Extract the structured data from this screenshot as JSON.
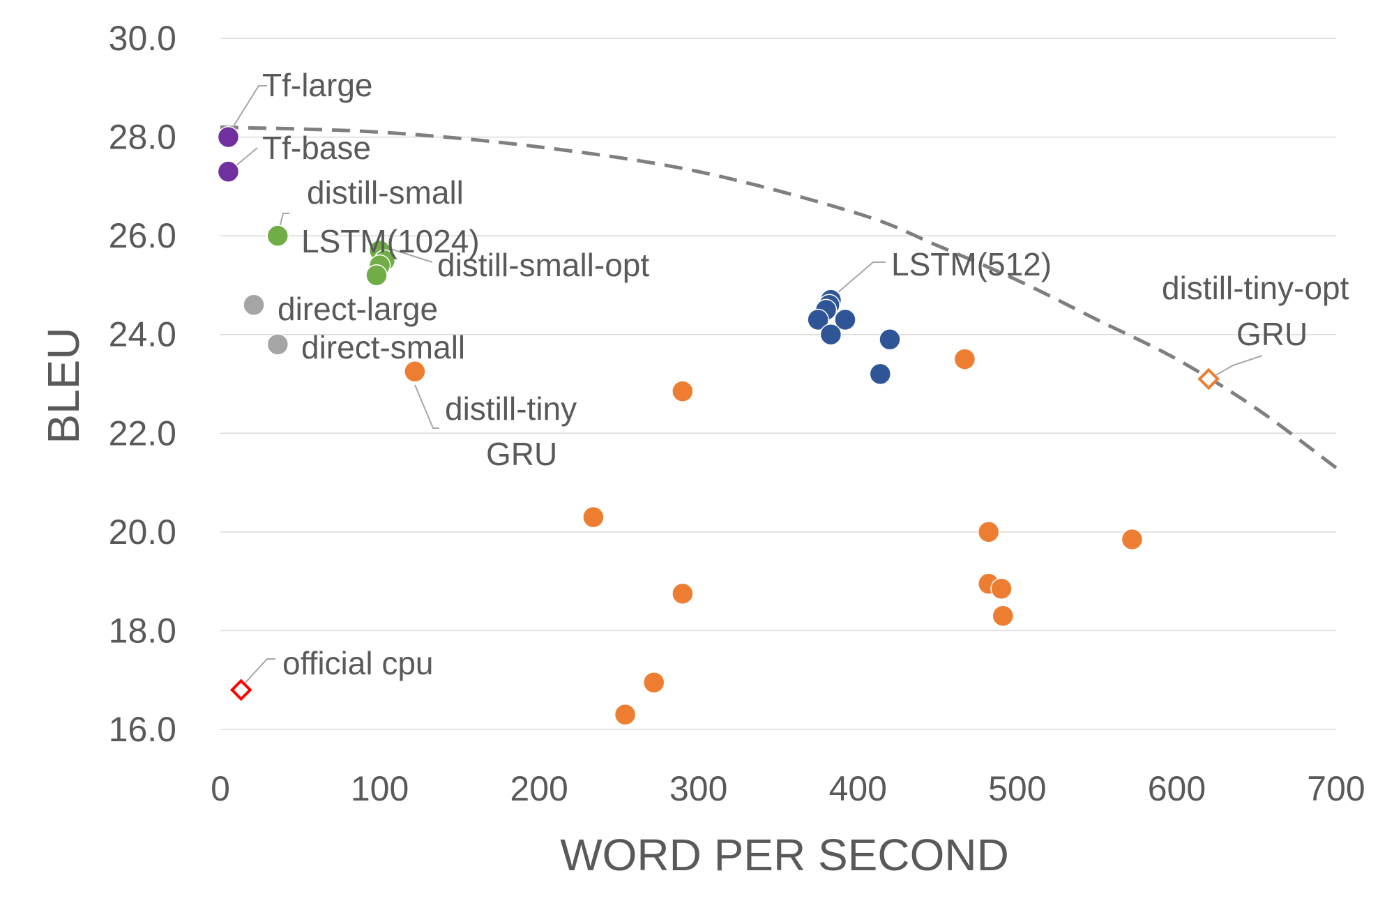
{
  "chart_data": {
    "type": "scatter",
    "title": "",
    "xlabel": "WORD PER SECOND",
    "ylabel": "BLEU",
    "xlim": [
      0,
      700
    ],
    "ylim": [
      16.0,
      30.0
    ],
    "x_ticks": [
      "0",
      "100",
      "200",
      "300",
      "400",
      "500",
      "600",
      "700"
    ],
    "y_ticks": [
      "16.0",
      "18.0",
      "20.0",
      "22.0",
      "24.0",
      "26.0",
      "28.0",
      "30.0"
    ],
    "grid": true,
    "legend": "none",
    "series": [
      {
        "group": "transformer",
        "color": "#7030a0",
        "marker": "circle",
        "points": [
          [
            5,
            28.0
          ],
          [
            5,
            27.3
          ]
        ]
      },
      {
        "group": "lstm-1024",
        "color": "#70ad47",
        "marker": "circle",
        "points": [
          [
            36,
            26.0
          ],
          [
            100,
            25.7
          ],
          [
            103,
            25.5
          ],
          [
            100,
            25.4
          ],
          [
            98,
            25.2
          ]
        ]
      },
      {
        "group": "direct",
        "color": "#a5a5a5",
        "marker": "circle",
        "points": [
          [
            21,
            24.6
          ],
          [
            36,
            23.8
          ]
        ]
      },
      {
        "group": "lstm-512",
        "color": "#2f5597",
        "marker": "circle",
        "points": [
          [
            383,
            24.7
          ],
          [
            382,
            24.6
          ],
          [
            380,
            24.5
          ],
          [
            375,
            24.3
          ],
          [
            392,
            24.3
          ],
          [
            383,
            24.0
          ],
          [
            420,
            23.9
          ],
          [
            414,
            23.2
          ]
        ]
      },
      {
        "group": "gru",
        "color": "#ed7d31",
        "marker": "circle",
        "points": [
          [
            122,
            23.25
          ],
          [
            290,
            22.85
          ],
          [
            467,
            23.5
          ],
          [
            234,
            20.3
          ],
          [
            290,
            18.75
          ],
          [
            272,
            16.95
          ],
          [
            254,
            16.3
          ],
          [
            482,
            20.0
          ],
          [
            572,
            19.85
          ],
          [
            482,
            18.95
          ],
          [
            490,
            18.85
          ],
          [
            491,
            18.3
          ]
        ]
      },
      {
        "group": "official",
        "color": "#ff0000",
        "marker": "diamond-open",
        "points": [
          [
            13,
            16.8
          ]
        ]
      },
      {
        "group": "gru-opt",
        "color": "#ed7d31",
        "marker": "diamond-open",
        "points": [
          [
            620,
            23.1
          ]
        ]
      }
    ],
    "frontier": {
      "color": "#7f7f7f",
      "style": "dashed",
      "points": [
        [
          0,
          28.2
        ],
        [
          100,
          28.1
        ],
        [
          200,
          27.8
        ],
        [
          300,
          27.3
        ],
        [
          400,
          26.45
        ],
        [
          450,
          25.8
        ],
        [
          500,
          25.1
        ],
        [
          550,
          24.3
        ],
        [
          600,
          23.5
        ],
        [
          650,
          22.5
        ],
        [
          700,
          21.3
        ]
      ]
    },
    "annotations": [
      {
        "id": "tf-large",
        "text": "Tf-large",
        "x": 5,
        "y": 28.0
      },
      {
        "id": "tf-base",
        "text": "Tf-base",
        "x": 5,
        "y": 27.3
      },
      {
        "id": "distill-small",
        "text": "distill-small",
        "x": 36,
        "y": 26.0
      },
      {
        "id": "lstm-1024",
        "text": "LSTM(1024)",
        "x": 36,
        "y": 26.0
      },
      {
        "id": "distill-small-opt",
        "text": "distill-small-opt",
        "x": 100,
        "y": 25.7
      },
      {
        "id": "direct-large",
        "text": "direct-large",
        "x": 21,
        "y": 24.6
      },
      {
        "id": "direct-small",
        "text": "direct-small",
        "x": 36,
        "y": 23.8
      },
      {
        "id": "lstm-512",
        "text": "LSTM(512)",
        "x": 383,
        "y": 24.7
      },
      {
        "id": "distill-tiny-opt",
        "text": "distill-tiny-opt",
        "x": 620,
        "y": 23.1
      },
      {
        "id": "gru-opt",
        "text": "GRU",
        "x": 620,
        "y": 23.1
      },
      {
        "id": "distill-tiny",
        "text": "distill-tiny",
        "x": 122,
        "y": 23.25
      },
      {
        "id": "gru",
        "text": "GRU",
        "x": 122,
        "y": 23.25
      },
      {
        "id": "official-cpu",
        "text": "official cpu",
        "x": 13,
        "y": 16.8
      }
    ]
  }
}
